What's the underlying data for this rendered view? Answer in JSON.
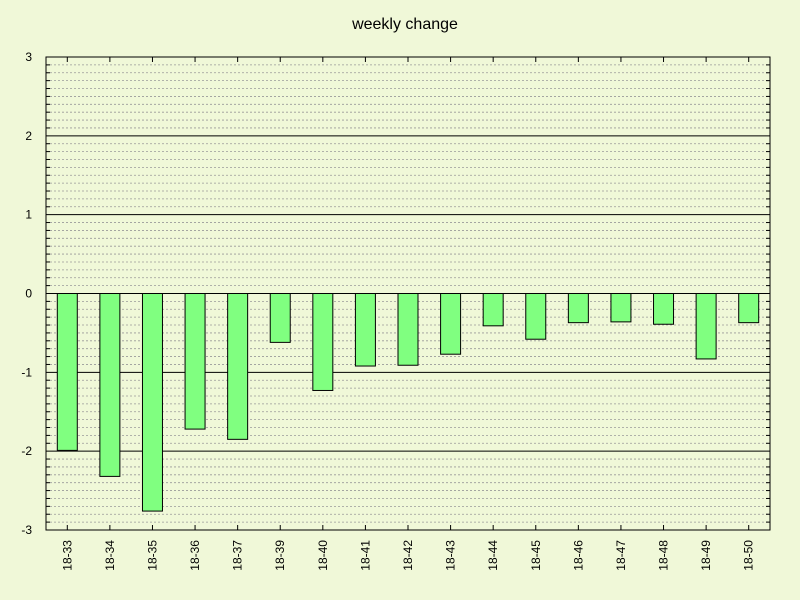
{
  "chart_data": {
    "type": "bar",
    "title": "weekly change",
    "xlabel": "",
    "ylabel": "",
    "categories": [
      "18-33",
      "18-34",
      "18-35",
      "18-36",
      "18-37",
      "18-39",
      "18-40",
      "18-41",
      "18-42",
      "18-43",
      "18-44",
      "18-45",
      "18-46",
      "18-47",
      "18-48",
      "18-49",
      "18-50"
    ],
    "values": [
      -1.99,
      -2.32,
      -2.76,
      -1.72,
      -1.85,
      -0.62,
      -1.23,
      -0.92,
      -0.91,
      -0.77,
      -0.41,
      -0.58,
      -0.37,
      -0.36,
      -0.39,
      -0.83,
      -0.37
    ],
    "ylim": [
      -3,
      3
    ],
    "yticks": [
      -3,
      -2,
      -1,
      0,
      1,
      2,
      3
    ],
    "minor_grid_step": 0.1,
    "grid": true,
    "colors": {
      "background": "#f0f8d8",
      "bar_fill": "#80ff80",
      "bar_stroke": "#000000",
      "major_grid": "#000000",
      "minor_grid": "#999999"
    }
  }
}
